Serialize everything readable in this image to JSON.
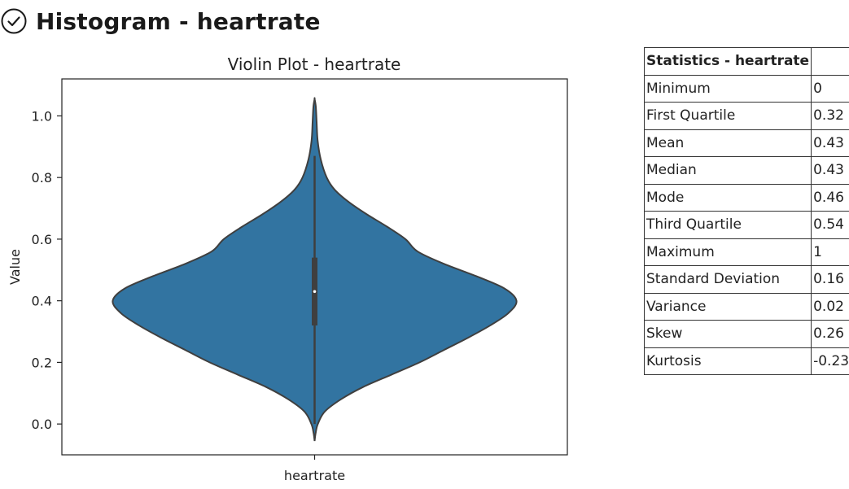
{
  "header": {
    "title": "Histogram - heartrate",
    "icon": "check-circle-icon"
  },
  "chart_data": {
    "type": "violin",
    "title": "Violin Plot - heartrate",
    "xlabel": "",
    "ylabel": "Value",
    "categories": [
      "heartrate"
    ],
    "ylim": [
      -0.1,
      1.12
    ],
    "yticks": [
      0.0,
      0.2,
      0.4,
      0.6,
      0.8,
      1.0
    ],
    "ytick_labels": [
      "0.0",
      "0.2",
      "0.4",
      "0.6",
      "0.8",
      "1.0"
    ],
    "grid": false,
    "fill_color": "#3274a1",
    "outline_color": "#3f3f3f",
    "density_extent": [
      -0.06,
      1.06
    ],
    "density_profile": [
      {
        "y": -0.055,
        "w": 0.0
      },
      {
        "y": -0.03,
        "w": 0.005
      },
      {
        "y": 0.0,
        "w": 0.016
      },
      {
        "y": 0.04,
        "w": 0.05
      },
      {
        "y": 0.08,
        "w": 0.13
      },
      {
        "y": 0.12,
        "w": 0.24
      },
      {
        "y": 0.16,
        "w": 0.38
      },
      {
        "y": 0.2,
        "w": 0.52
      },
      {
        "y": 0.24,
        "w": 0.64
      },
      {
        "y": 0.28,
        "w": 0.76
      },
      {
        "y": 0.32,
        "w": 0.87
      },
      {
        "y": 0.36,
        "w": 0.96
      },
      {
        "y": 0.4,
        "w": 1.0
      },
      {
        "y": 0.44,
        "w": 0.94
      },
      {
        "y": 0.48,
        "w": 0.8
      },
      {
        "y": 0.52,
        "w": 0.64
      },
      {
        "y": 0.56,
        "w": 0.51
      },
      {
        "y": 0.6,
        "w": 0.45
      },
      {
        "y": 0.64,
        "w": 0.36
      },
      {
        "y": 0.68,
        "w": 0.26
      },
      {
        "y": 0.72,
        "w": 0.17
      },
      {
        "y": 0.76,
        "w": 0.1
      },
      {
        "y": 0.8,
        "w": 0.06
      },
      {
        "y": 0.86,
        "w": 0.03
      },
      {
        "y": 0.92,
        "w": 0.015
      },
      {
        "y": 0.98,
        "w": 0.01
      },
      {
        "y": 1.03,
        "w": 0.006
      },
      {
        "y": 1.055,
        "w": 0.0
      }
    ],
    "box": {
      "q1": 0.32,
      "median": 0.43,
      "q3": 0.54,
      "whisker_low": 0.0,
      "whisker_high": 0.87
    }
  },
  "stats": {
    "title": "Statistics - heartrate",
    "rows": [
      {
        "label": "Minimum",
        "value": "0"
      },
      {
        "label": "First Quartile",
        "value": "0.32"
      },
      {
        "label": "Mean",
        "value": "0.43"
      },
      {
        "label": "Median",
        "value": "0.43"
      },
      {
        "label": "Mode",
        "value": "0.46"
      },
      {
        "label": "Third Quartile",
        "value": "0.54"
      },
      {
        "label": "Maximum",
        "value": "1"
      },
      {
        "label": "Standard Deviation",
        "value": "0.16"
      },
      {
        "label": "Variance",
        "value": "0.02"
      },
      {
        "label": "Skew",
        "value": "0.26"
      },
      {
        "label": "Kurtosis",
        "value": "-0.23"
      }
    ]
  }
}
